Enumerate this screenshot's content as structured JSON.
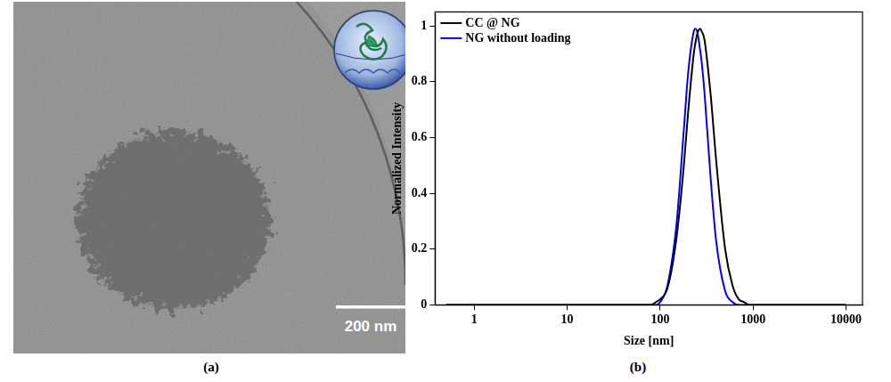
{
  "image_panel": {
    "label": "(a)",
    "scale_bar": "200 nm"
  },
  "chart_panel": {
    "label": "(b)"
  },
  "chart_data": {
    "type": "line",
    "x_label": "Size [nm]",
    "y_label": "Normalized Intensity",
    "x": [
      0.5,
      10,
      60,
      70,
      80,
      90,
      100,
      120,
      150,
      180,
      200,
      230,
      240,
      250,
      270,
      280,
      300,
      350,
      400,
      500,
      600,
      700,
      800,
      900,
      1000,
      10000
    ],
    "series": [
      {
        "name": "CC @ NG",
        "color": "#000000",
        "values": [
          0,
          0,
          0,
          0,
          0,
          0.01,
          0.02,
          0.06,
          0.24,
          0.5,
          0.69,
          0.9,
          0.94,
          0.97,
          0.99,
          0.98,
          0.95,
          0.75,
          0.52,
          0.2,
          0.07,
          0.02,
          0.01,
          0,
          0,
          0
        ]
      },
      {
        "name": "NG without loading",
        "color": "#0000ff",
        "values": [
          0,
          0,
          0,
          0,
          0,
          0,
          0.01,
          0.07,
          0.29,
          0.63,
          0.83,
          0.98,
          0.99,
          0.98,
          0.91,
          0.87,
          0.76,
          0.45,
          0.23,
          0.05,
          0.01,
          0,
          0,
          0,
          0,
          0
        ]
      }
    ],
    "log": "x",
    "xlim": [
      0.38,
      15000
    ],
    "xticks": [
      1,
      10,
      100,
      1000,
      10000
    ],
    "ylim": [
      0,
      1.05
    ],
    "yticks": [
      0,
      0.2,
      0.4,
      0.6,
      0.8,
      1
    ],
    "grid": false,
    "legend": "upper left"
  }
}
